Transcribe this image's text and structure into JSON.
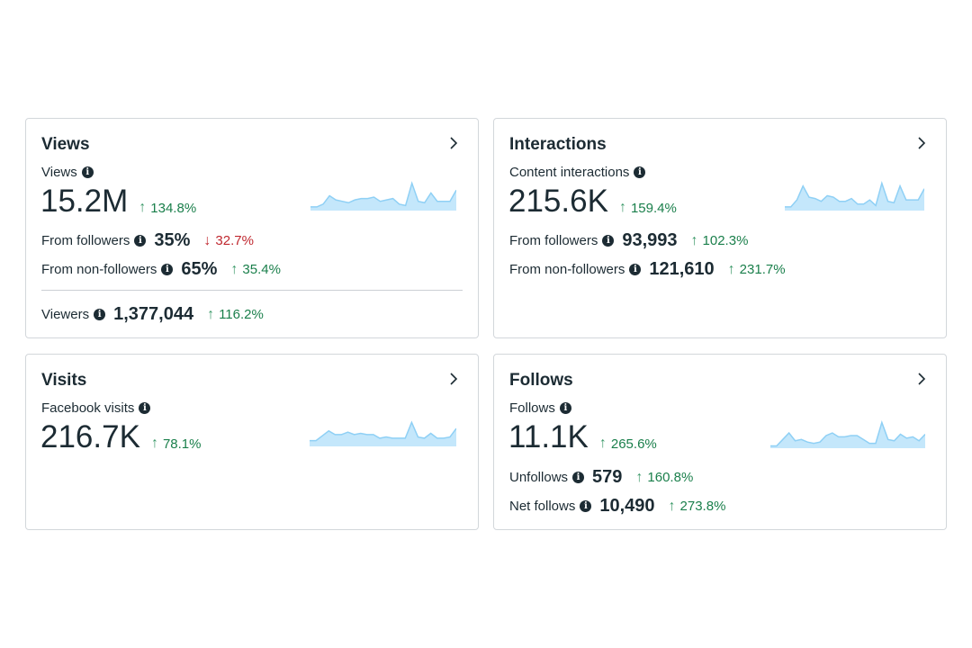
{
  "cards": {
    "views": {
      "title": "Views",
      "metric_label": "Views",
      "value": "15.2M",
      "change": "134.8%",
      "rows": [
        {
          "label": "From followers",
          "value": "35%",
          "change": "32.7%",
          "direction": "down"
        },
        {
          "label": "From non-followers",
          "value": "65%",
          "change": "35.4%",
          "direction": "up"
        }
      ],
      "footer": {
        "label": "Viewers",
        "value": "1,377,044",
        "change": "116.2%"
      },
      "spark": [
        0.1,
        0.1,
        0.2,
        0.5,
        0.35,
        0.3,
        0.25,
        0.35,
        0.4,
        0.4,
        0.45,
        0.3,
        0.35,
        0.4,
        0.2,
        0.15,
        0.95,
        0.3,
        0.25,
        0.6,
        0.3,
        0.3,
        0.3,
        0.7
      ]
    },
    "interactions": {
      "title": "Interactions",
      "metric_label": "Content interactions",
      "value": "215.6K",
      "change": "159.4%",
      "rows": [
        {
          "label": "From followers",
          "value": "93,993",
          "change": "102.3%",
          "direction": "up"
        },
        {
          "label": "From non-followers",
          "value": "121,610",
          "change": "231.7%",
          "direction": "up"
        }
      ],
      "spark": [
        0.1,
        0.1,
        0.35,
        0.85,
        0.45,
        0.4,
        0.3,
        0.5,
        0.45,
        0.3,
        0.3,
        0.4,
        0.2,
        0.2,
        0.35,
        0.15,
        0.95,
        0.3,
        0.25,
        0.85,
        0.35,
        0.35,
        0.35,
        0.75
      ]
    },
    "visits": {
      "title": "Visits",
      "metric_label": "Facebook visits",
      "value": "216.7K",
      "change": "78.1%",
      "spark": [
        0.2,
        0.2,
        0.4,
        0.6,
        0.45,
        0.45,
        0.55,
        0.45,
        0.5,
        0.45,
        0.45,
        0.3,
        0.35,
        0.3,
        0.3,
        0.3,
        0.95,
        0.35,
        0.3,
        0.5,
        0.3,
        0.3,
        0.35,
        0.7
      ]
    },
    "follows": {
      "title": "Follows",
      "metric_label": "Follows",
      "value": "11.1K",
      "change": "265.6%",
      "rows": [
        {
          "label": "Unfollows",
          "value": "579",
          "change": "160.8%",
          "direction": "up"
        },
        {
          "label": "Net follows",
          "value": "10,490",
          "change": "273.8%",
          "direction": "up"
        }
      ],
      "spark": [
        0.05,
        0.05,
        0.3,
        0.55,
        0.25,
        0.3,
        0.2,
        0.15,
        0.2,
        0.45,
        0.55,
        0.4,
        0.4,
        0.45,
        0.45,
        0.3,
        0.15,
        0.15,
        0.95,
        0.3,
        0.25,
        0.5,
        0.35,
        0.4,
        0.25,
        0.5
      ]
    }
  },
  "colors": {
    "positive": "#1a7f4b",
    "negative": "#c0282f",
    "spark_line": "#8fd0f5",
    "spark_fill": "#c4e7fb"
  }
}
